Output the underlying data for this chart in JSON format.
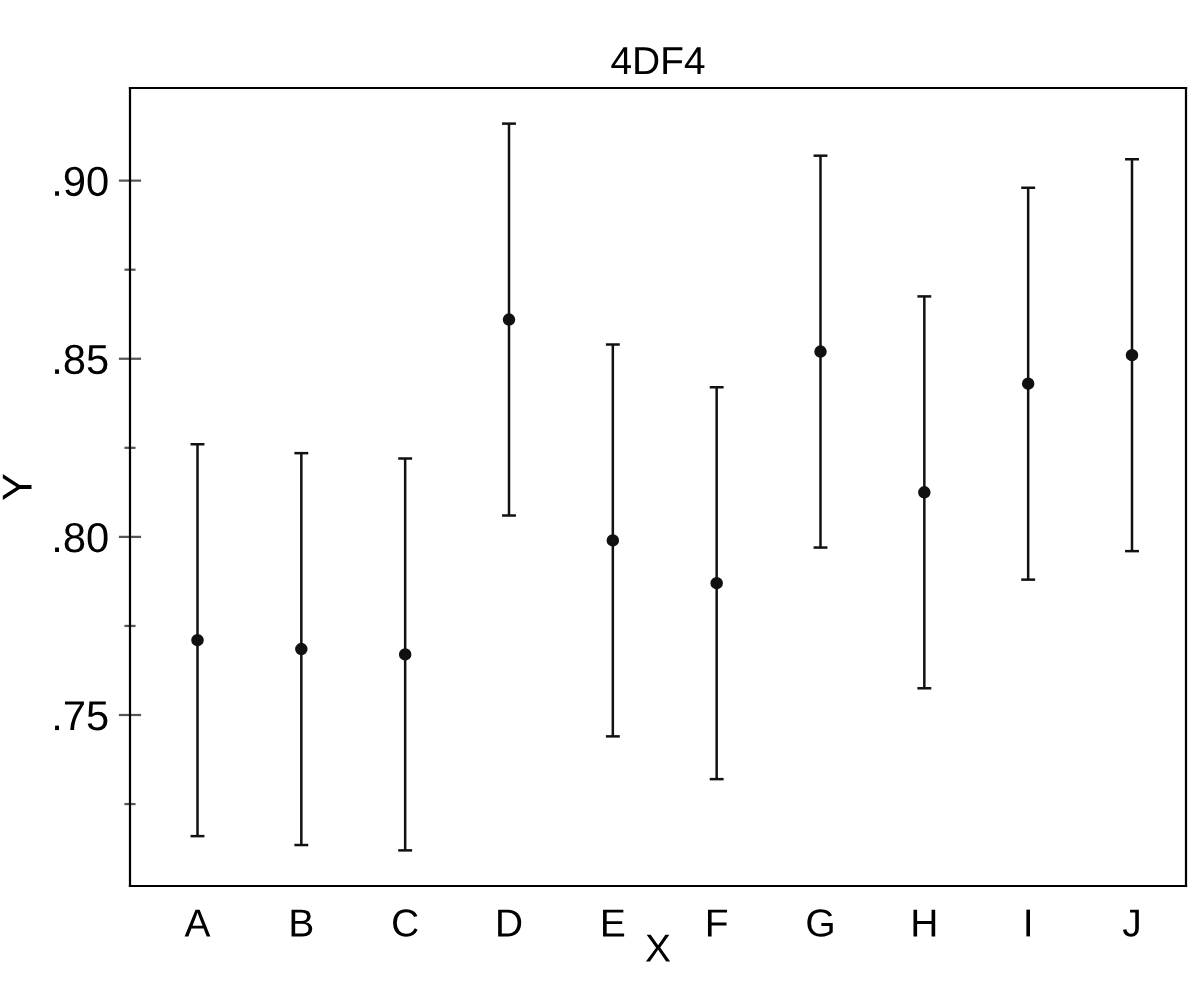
{
  "chart_data": {
    "type": "scatter",
    "title": "4DF4",
    "xlabel": "X",
    "ylabel": "Y",
    "categories": [
      "A",
      "B",
      "C",
      "D",
      "E",
      "F",
      "G",
      "H",
      "I",
      "J"
    ],
    "values": [
      0.771,
      0.7685,
      0.767,
      0.861,
      0.799,
      0.787,
      0.852,
      0.8125,
      0.843,
      0.851
    ],
    "errors": [
      0.055,
      0.055,
      0.055,
      0.055,
      0.055,
      0.055,
      0.055,
      0.055,
      0.055,
      0.055
    ],
    "color": "#111111",
    "marker": "circle",
    "ylim": [
      0.702,
      0.926
    ],
    "yticks": [
      {
        "value": 0.725,
        "label": null
      },
      {
        "value": 0.75,
        "label": ".75"
      },
      {
        "value": 0.775,
        "label": null
      },
      {
        "value": 0.8,
        "label": ".80"
      },
      {
        "value": 0.825,
        "label": null
      },
      {
        "value": 0.85,
        "label": ".85"
      },
      {
        "value": 0.875,
        "label": null
      },
      {
        "value": 0.9,
        "label": ".90"
      }
    ],
    "grid": false,
    "legend": false
  }
}
